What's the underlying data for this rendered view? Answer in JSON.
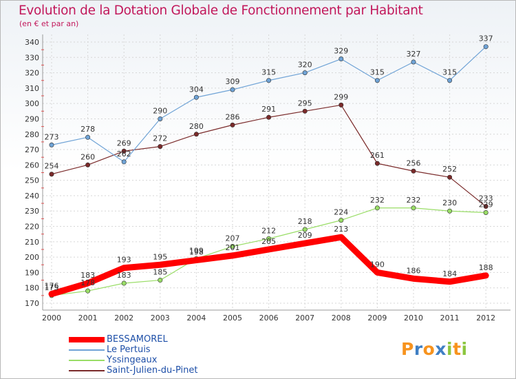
{
  "chart_data": {
    "type": "line",
    "title": "Evolution de la Dotation Globale de Fonctionnement par Habitant",
    "subtitle": "(en € et par an)",
    "categories": [
      "2000",
      "2001",
      "2002",
      "2003",
      "2004",
      "2005",
      "2006",
      "2007",
      "2008",
      "2009",
      "2010",
      "2011",
      "2012"
    ],
    "yticks": [
      170,
      180,
      190,
      200,
      210,
      220,
      230,
      240,
      250,
      260,
      270,
      280,
      290,
      300,
      310,
      320,
      330,
      340
    ],
    "ylim": [
      170,
      340
    ],
    "series": [
      {
        "name": "BESSAMOREL",
        "color": "#ff0000",
        "values": [
          176,
          183,
          193,
          195,
          198,
          201,
          205,
          209,
          213,
          190,
          186,
          184,
          188
        ],
        "labels": [
          "176",
          "183",
          "193",
          "195",
          "198",
          "201",
          "205",
          "209",
          "213",
          "190",
          "186",
          "184",
          "188"
        ]
      },
      {
        "name": "Le Pertuis",
        "color": "#6fa3d6",
        "values": [
          273,
          278,
          262,
          290,
          304,
          309,
          315,
          320,
          329,
          315,
          327,
          315,
          337
        ],
        "labels": [
          "273",
          "278",
          "262",
          "290",
          "304",
          "309",
          "315",
          "320",
          "329",
          "315",
          "327",
          "315",
          "337"
        ]
      },
      {
        "name": "Yssingeaux",
        "color": "#99dd66",
        "values": [
          175,
          178,
          183,
          185,
          199,
          207,
          212,
          218,
          224,
          232,
          232,
          230,
          229
        ],
        "labels": [
          "175",
          "178",
          "183",
          "185",
          "199",
          "207",
          "212",
          "218",
          "224",
          "232",
          "232",
          "230",
          "229"
        ]
      },
      {
        "name": "Saint-Julien-du-Pinet",
        "color": "#7a2a2a",
        "values": [
          254,
          260,
          269,
          272,
          280,
          286,
          291,
          295,
          299,
          261,
          256,
          252,
          233
        ],
        "labels": [
          "254",
          "260",
          "269",
          "272",
          "280",
          "286",
          "291",
          "295",
          "299",
          "261",
          "256",
          "252",
          "233"
        ]
      }
    ]
  },
  "logo": {
    "text": "Proxiti",
    "letters": [
      "P",
      "r",
      "o",
      "x",
      "i",
      "t",
      "i"
    ],
    "colors": [
      "#f7931e",
      "#3f7fc4",
      "#f7931e",
      "#3f7fc4",
      "#8cc63f",
      "#f7931e",
      "#8cc63f"
    ]
  }
}
